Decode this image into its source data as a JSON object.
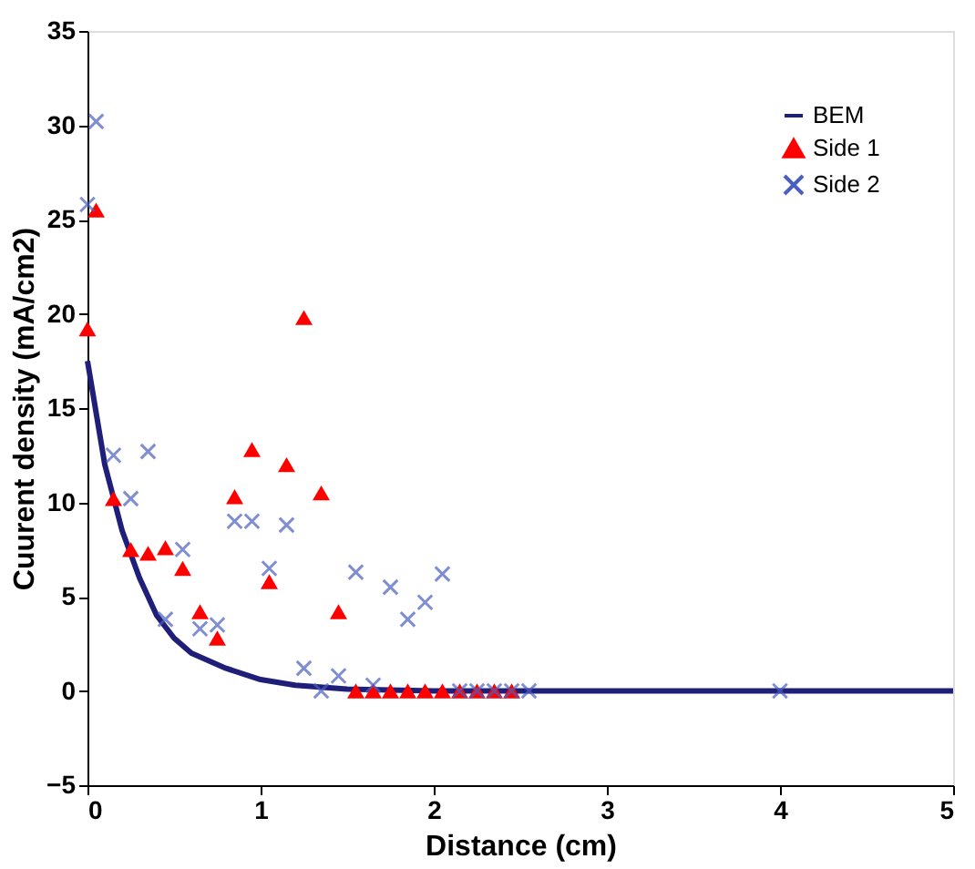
{
  "chart_data": {
    "type": "scatter",
    "xlabel": "Distance (cm)",
    "ylabel": "Cuurent density (mA/cm2)",
    "xlim": [
      0,
      5
    ],
    "xticks": [
      0,
      1,
      2,
      3,
      4,
      5
    ],
    "ylim": [
      -5,
      35
    ],
    "yticks": [
      -5,
      0,
      5,
      10,
      15,
      20,
      25,
      30,
      35
    ],
    "grid": false,
    "legend": "top right",
    "series": [
      {
        "name": "BEM",
        "type": "line",
        "color": "#1f1f7a",
        "marker": "none",
        "line_style": "solid",
        "x": [
          0,
          0.1,
          0.2,
          0.3,
          0.4,
          0.5,
          0.6,
          0.8,
          1.0,
          1.2,
          1.5,
          2,
          5
        ],
        "values": [
          17.5,
          12,
          8.5,
          6,
          4,
          2.8,
          2,
          1.2,
          0.6,
          0.3,
          0.1,
          0,
          0
        ]
      },
      {
        "name": "Side 1",
        "type": "scatter",
        "color": "#ff0000",
        "marker": "triangle",
        "x": [
          0,
          0.05,
          0.15,
          0.25,
          0.35,
          0.45,
          0.55,
          0.65,
          0.75,
          0.85,
          0.95,
          1.05,
          1.15,
          1.25,
          1.35,
          1.45,
          1.55,
          1.65,
          1.75,
          1.85,
          1.95,
          2.05,
          2.15,
          2.25,
          2.35,
          2.45
        ],
        "values": [
          19.2,
          25.5,
          10.2,
          7.5,
          7.3,
          7.6,
          6.5,
          4.2,
          2.8,
          10.3,
          12.8,
          5.8,
          12,
          19.8,
          10.5,
          4.2,
          0,
          0,
          0,
          0,
          0,
          0,
          0,
          0,
          0,
          0
        ]
      },
      {
        "name": "Side 2",
        "type": "scatter",
        "color": "#4a5fbf",
        "marker": "cross",
        "x": [
          0,
          0.05,
          0.15,
          0.25,
          0.35,
          0.45,
          0.55,
          0.65,
          0.75,
          0.85,
          0.95,
          1.05,
          1.15,
          1.25,
          1.35,
          1.45,
          1.55,
          1.65,
          1.75,
          1.85,
          1.95,
          2.05,
          2.15,
          2.25,
          2.35,
          2.45,
          2.55,
          4
        ],
        "values": [
          25.8,
          30.2,
          12.5,
          10.2,
          12.7,
          3.8,
          7.5,
          3.3,
          3.5,
          9,
          9,
          6.5,
          8.8,
          1.2,
          0,
          0.8,
          6.3,
          0.3,
          5.5,
          3.8,
          4.7,
          6.2,
          0,
          0,
          0,
          0,
          0,
          0
        ]
      }
    ]
  }
}
